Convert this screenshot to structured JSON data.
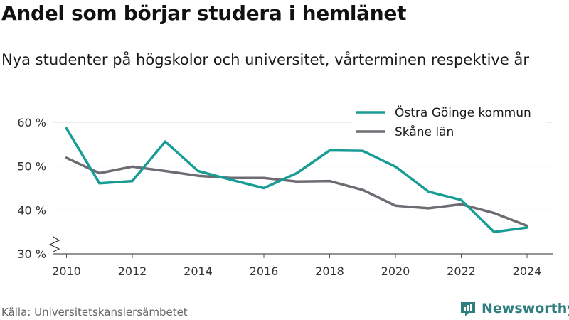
{
  "header": {
    "title": "Andel som börjar studera i hemlänet",
    "subtitle": "Nya studenter på högskolor och universitet, vårterminen respektive år"
  },
  "footer": {
    "source": "Källa: Universitetskanslersämbetet",
    "brand": "Newsworthy",
    "brand_icon": "newsworthy-logo-icon"
  },
  "colors": {
    "accent": "#1a9c96",
    "secondary": "#6e6c72",
    "brand": "#2f7f80",
    "grid": "#d9d9d9"
  },
  "chart_data": {
    "type": "line",
    "title": "",
    "xlabel": "",
    "ylabel": "",
    "x": [
      2010,
      2011,
      2012,
      2013,
      2014,
      2015,
      2016,
      2017,
      2018,
      2019,
      2020,
      2021,
      2022,
      2023,
      2024
    ],
    "xticks": [
      2010,
      2012,
      2014,
      2016,
      2018,
      2020,
      2022,
      2024
    ],
    "xlim": [
      2009.6,
      2024.8
    ],
    "ylim": [
      30,
      60
    ],
    "yticks": [
      {
        "value": 30,
        "label": "30 %"
      },
      {
        "value": 40,
        "label": "40 %"
      },
      {
        "value": 50,
        "label": "50 %"
      },
      {
        "value": 60,
        "label": "60 %"
      }
    ],
    "axis_break": true,
    "grid": true,
    "legend": "top-right",
    "series": [
      {
        "name": "Östra Göinge kommun",
        "color": "#1a9c96",
        "values": [
          58.6,
          46.1,
          46.6,
          55.6,
          48.9,
          46.9,
          45.0,
          48.4,
          53.6,
          53.5,
          49.9,
          44.2,
          42.3,
          35.0,
          36.0
        ]
      },
      {
        "name": "Skåne län",
        "color": "#6e6c72",
        "values": [
          51.9,
          48.4,
          49.9,
          48.9,
          47.8,
          47.3,
          47.3,
          46.5,
          46.6,
          44.6,
          41.0,
          40.4,
          41.3,
          39.3,
          36.4
        ]
      }
    ]
  }
}
